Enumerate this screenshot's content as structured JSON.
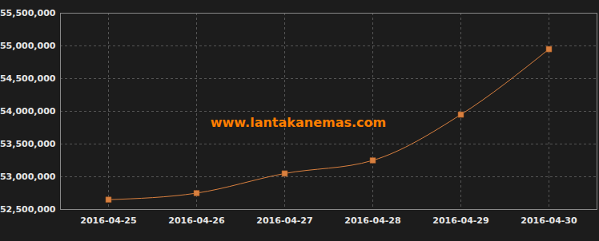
{
  "chart_data": {
    "type": "line",
    "annotation": "www.lantakanemas.com",
    "x": [
      "2016-04-25",
      "2016-04-26",
      "2016-04-27",
      "2016-04-28",
      "2016-04-29",
      "2016-04-30"
    ],
    "values": [
      52650000,
      52750000,
      53050000,
      53250000,
      53950000,
      54950000
    ],
    "color": "#d9803f",
    "marker": "square",
    "line_style": "solid",
    "ylim": [
      52500000,
      55500000
    ],
    "yticks": [
      {
        "value": 52500000,
        "label": "52,500,000"
      },
      {
        "value": 53000000,
        "label": "53,000,000"
      },
      {
        "value": 53500000,
        "label": "53,500,000"
      },
      {
        "value": 54000000,
        "label": "54,000,000"
      },
      {
        "value": 54500000,
        "label": "54,500,000"
      },
      {
        "value": 55000000,
        "label": "55,000,000"
      },
      {
        "value": 55500000,
        "label": "55,500,000"
      }
    ],
    "grid": true
  }
}
